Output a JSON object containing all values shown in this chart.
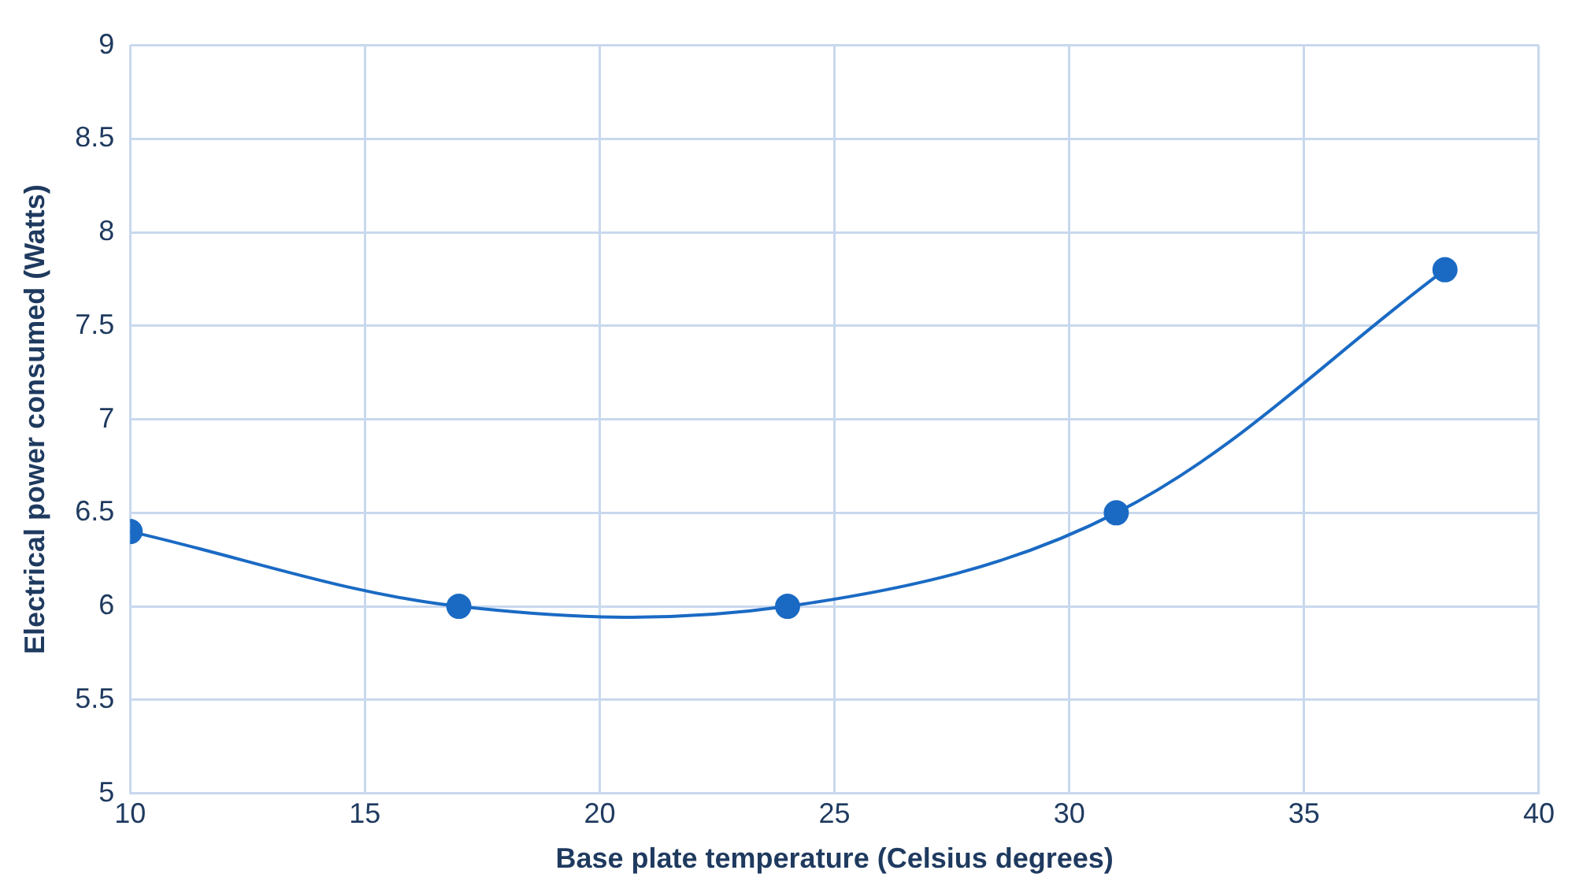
{
  "chart_data": {
    "type": "line",
    "xlabel": "Base plate temperature (Celsius degrees)",
    "ylabel": "Electrical power consumed (Watts)",
    "x": [
      10,
      17,
      24,
      31,
      38
    ],
    "series": [
      {
        "color": "#1a6ac4",
        "values": [
          6.4,
          6.0,
          6.0,
          6.5,
          7.8
        ]
      }
    ],
    "xlim": [
      10,
      40
    ],
    "xticks": [
      10,
      15,
      20,
      25,
      30,
      35,
      40
    ],
    "ylim": [
      5,
      9
    ],
    "yticks": [
      5,
      5.5,
      6,
      6.5,
      7,
      7.5,
      8,
      8.5,
      9
    ],
    "grid": true,
    "legend": false,
    "marker": "circle",
    "line_style": "solid"
  }
}
